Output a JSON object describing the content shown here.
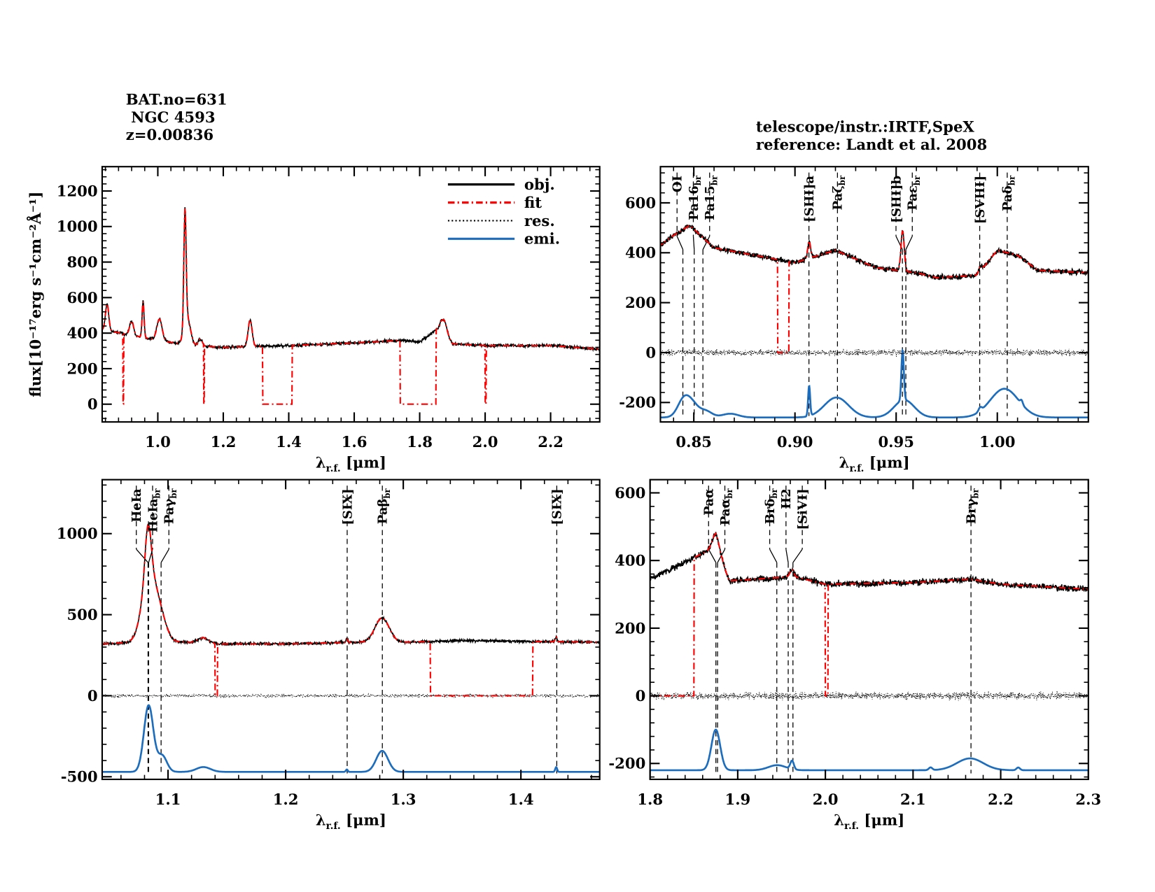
{
  "header": {
    "left": [
      "BAT.no=631",
      " NGC 4593",
      "z=0.00836"
    ],
    "right": [
      "telescope/instr.:IRTF,SpeX",
      "reference: Landt et al. 2008"
    ]
  },
  "colors": {
    "obj": "#000000",
    "fit": "#ff0000",
    "res": "#000000",
    "emi": "#1c6dbd"
  },
  "legend": {
    "placement": "top-right",
    "entries": [
      {
        "label": "obj.",
        "style": "solid",
        "color": "#000000"
      },
      {
        "label": "fit",
        "style": "dash-dot",
        "color": "#ff0000"
      },
      {
        "label": "res.",
        "style": "dotted",
        "color": "#000000"
      },
      {
        "label": "emi.",
        "style": "solid",
        "color": "#1c6dbd"
      }
    ]
  },
  "chart_data": [
    {
      "type": "line",
      "xlabel": {
        "main": "λ",
        "sub": "r.f.",
        "unit": " [μm]"
      },
      "ylabel": "flux[10⁻¹⁷erg s⁻¹cm⁻²Å⁻¹]",
      "xlim": [
        0.83,
        2.35
      ],
      "ylim": [
        -100,
        1337
      ],
      "xticks": [
        1.0,
        1.2,
        1.4,
        1.6,
        1.8,
        2.0,
        2.2
      ],
      "xtick_labels": [
        "1.0",
        "1.2",
        "1.4",
        "1.6",
        "1.8",
        "2.0",
        "2.2"
      ],
      "yticks": [
        0,
        200,
        400,
        600,
        800,
        1000,
        1200
      ],
      "ytick_labels": [
        "0",
        "200",
        "400",
        "600",
        "800",
        "1000",
        "1200"
      ],
      "continuum": [
        [
          0.83,
          420
        ],
        [
          0.9,
          395
        ],
        [
          1.0,
          360
        ],
        [
          1.1,
          330
        ],
        [
          1.2,
          320
        ],
        [
          1.4,
          330
        ],
        [
          1.6,
          345
        ],
        [
          1.75,
          360
        ],
        [
          1.8,
          350
        ],
        [
          1.865,
          440
        ],
        [
          1.9,
          340
        ],
        [
          2.0,
          330
        ],
        [
          2.2,
          330
        ],
        [
          2.35,
          310
        ]
      ],
      "obj_lines": [
        [
          0.845,
          150,
          0.005
        ],
        [
          0.92,
          80,
          0.006
        ],
        [
          0.955,
          200,
          0.003
        ],
        [
          1.005,
          120,
          0.008
        ],
        [
          1.083,
          650,
          0.0035
        ],
        [
          1.09,
          150,
          0.01
        ],
        [
          1.13,
          40,
          0.006
        ],
        [
          1.282,
          150,
          0.006
        ],
        [
          1.875,
          60,
          0.008
        ]
      ],
      "fit_zero_ranges": [
        [
          0.893,
          0.896
        ],
        [
          1.14,
          1.142
        ],
        [
          1.32,
          1.41
        ],
        [
          1.74,
          1.85
        ],
        [
          2.0,
          2.003
        ]
      ],
      "noise": 8,
      "emi_baseline": null,
      "emi_lines": [],
      "markers": []
    },
    {
      "type": "line",
      "xlabel": {
        "main": "λ",
        "sub": "r.f.",
        "unit": " [μm]"
      },
      "xlim": [
        0.8335,
        1.045
      ],
      "ylim": [
        -278,
        745
      ],
      "xticks": [
        0.85,
        0.9,
        0.95,
        1.0
      ],
      "xtick_labels": [
        "0.85",
        "0.90",
        "0.95",
        "1.00"
      ],
      "yticks": [
        -200,
        0,
        200,
        400,
        600
      ],
      "ytick_labels": [
        "-200",
        "0",
        "200",
        "400",
        "600"
      ],
      "continuum": [
        [
          0.8335,
          430
        ],
        [
          0.84,
          470
        ],
        [
          0.848,
          510
        ],
        [
          0.86,
          420
        ],
        [
          0.88,
          390
        ],
        [
          0.9,
          360
        ],
        [
          0.92,
          410
        ],
        [
          0.94,
          340
        ],
        [
          0.96,
          320
        ],
        [
          0.97,
          300
        ],
        [
          0.99,
          310
        ],
        [
          1.0,
          410
        ],
        [
          1.01,
          390
        ],
        [
          1.02,
          330
        ],
        [
          1.045,
          320
        ]
      ],
      "obj_lines": [
        [
          0.907,
          70,
          0.0007
        ],
        [
          0.9532,
          160,
          0.0008
        ],
        [
          0.9915,
          20,
          0.0008
        ]
      ],
      "fit_zero_ranges": [
        [
          0.8915,
          0.897
        ]
      ],
      "noise": 10,
      "emi_baseline": -260,
      "emi_lines": [
        [
          0.845,
          70,
          0.003
        ],
        [
          0.8495,
          45,
          0.003
        ],
        [
          0.856,
          25,
          0.003
        ],
        [
          0.868,
          15,
          0.004
        ],
        [
          0.907,
          120,
          0.0005
        ],
        [
          0.9205,
          80,
          0.006
        ],
        [
          0.9532,
          200,
          0.0006
        ],
        [
          0.954,
          70,
          0.005
        ],
        [
          0.9915,
          15,
          0.0008
        ],
        [
          1.0035,
          115,
          0.007
        ],
        [
          1.012,
          15,
          0.0006
        ]
      ],
      "markers": [
        {
          "x": 0.8446,
          "label": "OI",
          "sub": ""
        },
        {
          "x": 0.8502,
          "label": "Pa16",
          "sub": "br"
        },
        {
          "x": 0.8545,
          "label": "Pa15",
          "sub": "br"
        },
        {
          "x": 0.9069,
          "label": "[SIII]a",
          "sub": ""
        },
        {
          "x": 0.921,
          "label": "Paζ",
          "sub": "br"
        },
        {
          "x": 0.9531,
          "label": "[SIII]b",
          "sub": ""
        },
        {
          "x": 0.9548,
          "label": "Paε",
          "sub": "br"
        },
        {
          "x": 0.9913,
          "label": "[SVIII]",
          "sub": ""
        },
        {
          "x": 1.0049,
          "label": "Paδ",
          "sub": "br"
        }
      ]
    },
    {
      "type": "line",
      "xlabel": {
        "main": "λ",
        "sub": "r.f.",
        "unit": " [μm]"
      },
      "xlim": [
        1.044,
        1.467
      ],
      "ylim": [
        -516,
        1333
      ],
      "xticks": [
        1.1,
        1.2,
        1.3,
        1.4
      ],
      "xtick_labels": [
        "1.1",
        "1.2",
        "1.3",
        "1.4"
      ],
      "yticks": [
        -500,
        0,
        500,
        1000
      ],
      "ytick_labels": [
        "-500",
        "0",
        "500",
        "1000"
      ],
      "continuum": [
        [
          1.044,
          320
        ],
        [
          1.07,
          330
        ],
        [
          1.1,
          335
        ],
        [
          1.12,
          330
        ],
        [
          1.13,
          360
        ],
        [
          1.14,
          320
        ],
        [
          1.2,
          320
        ],
        [
          1.26,
          330
        ],
        [
          1.3,
          330
        ],
        [
          1.35,
          340
        ],
        [
          1.467,
          330
        ]
      ],
      "obj_lines": [
        [
          1.083,
          300,
          0.0025
        ],
        [
          1.084,
          420,
          0.006
        ],
        [
          1.094,
          120,
          0.005
        ],
        [
          1.252,
          20,
          0.0008
        ],
        [
          1.282,
          150,
          0.006
        ],
        [
          1.43,
          30,
          0.0008
        ]
      ],
      "fit_zero_ranges": [
        [
          1.14,
          1.142
        ],
        [
          1.323,
          1.41
        ]
      ],
      "noise": 8,
      "emi_baseline": -470,
      "emi_lines": [
        [
          1.0835,
          410,
          0.004
        ],
        [
          1.095,
          100,
          0.004
        ],
        [
          1.13,
          30,
          0.006
        ],
        [
          1.252,
          15,
          0.0008
        ],
        [
          1.282,
          130,
          0.005
        ],
        [
          1.43,
          30,
          0.0008
        ]
      ],
      "markers": [
        {
          "x": 1.083,
          "label": "HeIa",
          "sub": ""
        },
        {
          "x": 1.0835,
          "label": "HeIa",
          "sub": "br"
        },
        {
          "x": 1.0941,
          "label": "Paγ",
          "sub": "br"
        },
        {
          "x": 1.2523,
          "label": "[SIX]",
          "sub": ""
        },
        {
          "x": 1.2822,
          "label": "Paβ",
          "sub": "br"
        },
        {
          "x": 1.4305,
          "label": "[SIX]",
          "sub": ""
        }
      ]
    },
    {
      "type": "line",
      "xlabel": {
        "main": "λ",
        "sub": "r.f.",
        "unit": " [μm]"
      },
      "xlim": [
        1.8,
        2.3
      ],
      "ylim": [
        -247,
        639
      ],
      "xticks": [
        1.8,
        1.9,
        2.0,
        2.1,
        2.2,
        2.3
      ],
      "xtick_labels": [
        "1.8",
        "1.9",
        "2.0",
        "2.1",
        "2.2",
        "2.3"
      ],
      "yticks": [
        -200,
        0,
        200,
        400,
        600
      ],
      "ytick_labels": [
        "-200",
        "0",
        "200",
        "400",
        "600"
      ],
      "continuum": [
        [
          1.8,
          345
        ],
        [
          1.875,
          440
        ],
        [
          1.882,
          400
        ],
        [
          1.89,
          340
        ],
        [
          1.95,
          350
        ],
        [
          1.96,
          355
        ],
        [
          2.0,
          330
        ],
        [
          2.1,
          335
        ],
        [
          2.165,
          345
        ],
        [
          2.2,
          330
        ],
        [
          2.3,
          315
        ]
      ],
      "obj_lines": [
        [
          1.875,
          40,
          0.004
        ],
        [
          1.962,
          20,
          0.002
        ]
      ],
      "fit_zero_ranges": [
        [
          1.8,
          1.85
        ],
        [
          2.0,
          2.003
        ]
      ],
      "noise": 9,
      "emi_baseline": -220,
      "emi_lines": [
        [
          1.875,
          120,
          0.005
        ],
        [
          1.945,
          15,
          0.01
        ],
        [
          1.962,
          25,
          0.002
        ],
        [
          2.12,
          8,
          0.002
        ],
        [
          2.165,
          35,
          0.015
        ],
        [
          2.22,
          8,
          0.002
        ]
      ],
      "markers": [
        {
          "x": 1.8751,
          "label": "Paα",
          "sub": ""
        },
        {
          "x": 1.877,
          "label": "Paα",
          "sub": "br"
        },
        {
          "x": 1.9446,
          "label": "Brδ",
          "sub": "br"
        },
        {
          "x": 1.9576,
          "label": "H2",
          "sub": ""
        },
        {
          "x": 1.963,
          "label": "[SiVI]",
          "sub": ""
        },
        {
          "x": 2.1661,
          "label": "Brγ",
          "sub": "br"
        }
      ]
    }
  ]
}
